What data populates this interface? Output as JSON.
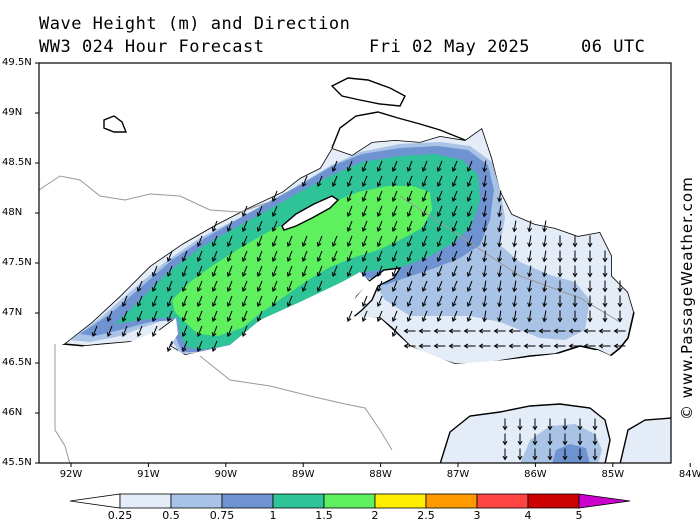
{
  "header": {
    "line1": "Wave Height (m) and Direction",
    "line2": "WW3 024 Hour Forecast",
    "date": "Fri 02 May 2025",
    "time": "06 UTC"
  },
  "map": {
    "lat_labels": [
      "49.5N",
      "49N",
      "48.5N",
      "48N",
      "47.5N",
      "47N",
      "46.5N",
      "46N",
      "45.5N"
    ],
    "lon_labels": [
      "92W",
      "91W",
      "90W",
      "89W",
      "88W",
      "87W",
      "86W",
      "85W",
      "84W"
    ],
    "lat_range": [
      45.5,
      49.5
    ],
    "lon_range": [
      -92.4,
      -84.0
    ]
  },
  "legend": {
    "labels": [
      "0.25",
      "0.5",
      "0.75",
      "1",
      "1.5",
      "2",
      "2.5",
      "3",
      "4",
      "5"
    ],
    "colors": [
      "#ffffff",
      "#e3ecf7",
      "#a9c3e6",
      "#6f93d1",
      "#2fc497",
      "#5ff060",
      "#ffee00",
      "#ff9900",
      "#ff4444",
      "#cc0000",
      "#cc00cc"
    ]
  },
  "credit": "© www.PassageWeather.com"
}
